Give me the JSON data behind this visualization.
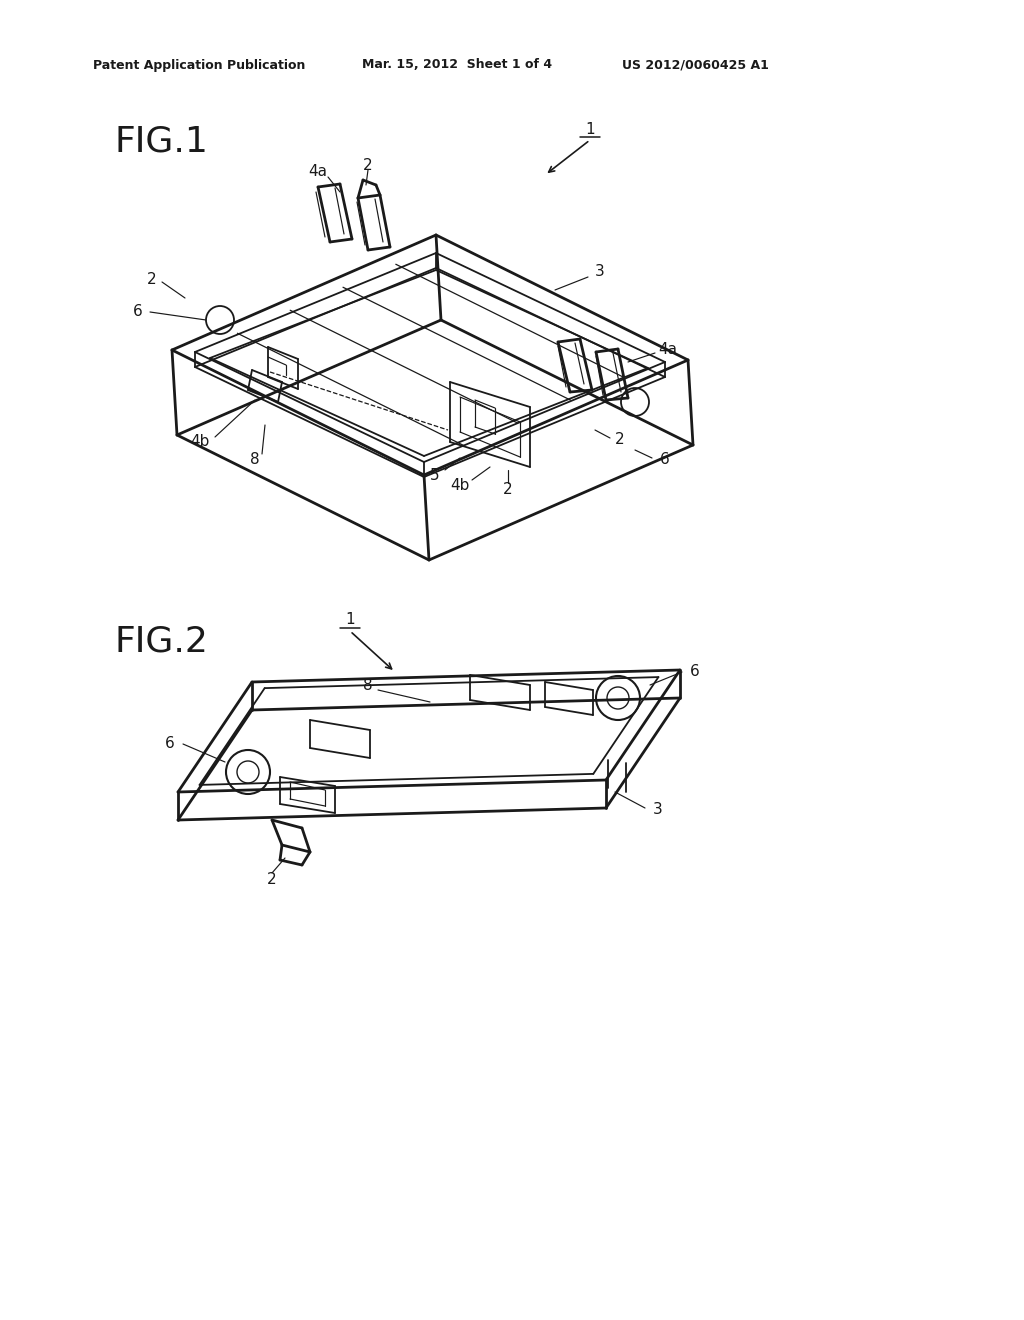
{
  "bg_color": "#ffffff",
  "header_left": "Patent Application Publication",
  "header_mid": "Mar. 15, 2012  Sheet 1 of 4",
  "header_right": "US 2012/0060425 A1",
  "fig1_label": "FIG.1",
  "fig2_label": "FIG.2",
  "lc": "#1a1a1a",
  "tc": "#1a1a1a",
  "lw_outer": 2.0,
  "lw_inner": 1.3,
  "lw_thin": 0.85,
  "lw_leader": 0.85,
  "fs_header": 9,
  "fs_fig": 26,
  "fs_ref": 11
}
